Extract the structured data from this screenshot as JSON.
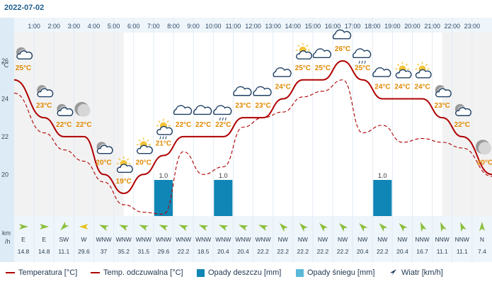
{
  "date": "2022-07-02",
  "units": {
    "temp": "°C",
    "wind": "km/h"
  },
  "chart_data": {
    "type": "line",
    "hours": [
      "1:00",
      "2:00",
      "3:00",
      "4:00",
      "5:00",
      "6:00",
      "7:00",
      "8:00",
      "9:00",
      "10:00",
      "11:00",
      "12:00",
      "13:00",
      "14:00",
      "15:00",
      "16:00",
      "17:00",
      "18:00",
      "19:00",
      "20:00",
      "21:00",
      "22:00",
      "23:00"
    ],
    "y_ticks": [
      20,
      22,
      24,
      26
    ],
    "ylim": [
      17.8,
      27.5
    ],
    "temperature": [
      25,
      23,
      22,
      22,
      20,
      19,
      20,
      21,
      22,
      22,
      22,
      23,
      23,
      24,
      25,
      25,
      26,
      25,
      24,
      24,
      24,
      23,
      22,
      20
    ],
    "temperature_labels": [
      "25°C",
      "23°C",
      "22°C",
      "22°C",
      "20°C",
      "19°C",
      "20°C",
      "21°C",
      "22°C",
      "22°C",
      "22°C",
      "23°C",
      "23°C",
      "24°C",
      "25°C",
      "25°C",
      "26°C",
      "25°C",
      "24°C",
      "24°C",
      "24°C",
      "23°C",
      "22°C",
      "20°C"
    ],
    "feels_like": [
      24.3,
      22.2,
      21.3,
      20.7,
      19.6,
      18.4,
      18.0,
      17.9,
      21.2,
      20.0,
      20.4,
      22.5,
      23.0,
      23.3,
      24.1,
      24.4,
      25.0,
      22.2,
      22.6,
      21.7,
      21.9,
      21.7,
      21.4,
      19.9
    ],
    "rain": [
      0,
      0,
      0,
      0,
      0,
      0,
      0,
      1.0,
      0,
      0,
      1.0,
      0,
      0,
      0,
      0,
      0,
      0,
      0,
      1.0,
      0,
      0,
      0,
      0,
      0
    ],
    "rain_labels": [
      "",
      "",
      "",
      "",
      "",
      "",
      "",
      "1.0",
      "",
      "",
      "1.0",
      "",
      "",
      "",
      "",
      "",
      "",
      "",
      "1.0",
      "",
      "",
      "",
      "",
      ""
    ],
    "weather_icons": [
      "partly-cloudy-night",
      "partly-cloudy-night",
      "partly-cloudy-night",
      "clear-night",
      "partly-cloudy-night",
      "partly-cloudy",
      "partly-cloudy",
      "partly-cloudy-rain",
      "cloudy",
      "cloudy",
      "cloudy-thunder",
      "cloudy",
      "cloudy",
      "cloudy",
      "partly-cloudy",
      "cloudy",
      "cloudy",
      "cloudy-rain",
      "cloudy",
      "partly-cloudy",
      "partly-cloudy",
      "partly-cloudy-night",
      "partly-cloudy-night",
      "clear-night"
    ],
    "wind_dir": [
      "E",
      "E",
      "SW",
      "W",
      "WNW",
      "WNW",
      "WNW",
      "WNW",
      "WNW",
      "WNW",
      "WNW",
      "WNW",
      "WNW",
      "NW",
      "NW",
      "NW",
      "NW",
      "NW",
      "NW",
      "NW",
      "NNW",
      "NNW",
      "NNW",
      "N"
    ],
    "wind_speed": [
      "14.8",
      "14.8",
      "11.1",
      "29.6",
      "37",
      "35.2",
      "31.5",
      "29.6",
      "22.2",
      "18.5",
      "20.4",
      "20.4",
      "22.2",
      "22.2",
      "22.2",
      "22.2",
      "22.2",
      "20.4",
      "22.2",
      "20.4",
      "16.7",
      "11.1",
      "11.1",
      "7.4"
    ],
    "night_shading": true
  },
  "colors": {
    "temperature": "#b00000",
    "feels_like": "#b00000",
    "rain": "#0f86b5",
    "snow": "#5bb9d8",
    "wind_arrow": "#1f3f63",
    "label": "#e08a00"
  },
  "legend": {
    "temperature": "Temperatura [°C]",
    "feels_like": "Temp. odczuwalna [°C]",
    "rain": "Opady deszczu [mm]",
    "snow": "Opady śniegu [mm]",
    "wind": "Wiatr [km/h]"
  }
}
